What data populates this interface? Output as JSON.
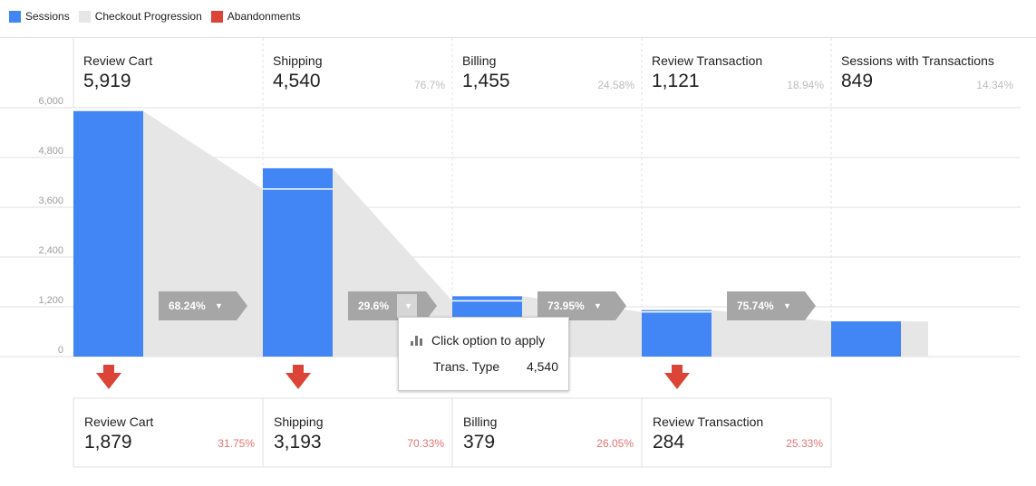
{
  "legend": [
    {
      "label": "Sessions",
      "color": "#4285f4"
    },
    {
      "label": "Checkout Progression",
      "color": "#e6e6e6"
    },
    {
      "label": "Abandonments",
      "color": "#db4437"
    }
  ],
  "y_axis": {
    "ticks": [
      "6,000",
      "4,800",
      "3,600",
      "2,400",
      "1,200",
      "0"
    ]
  },
  "stages": [
    {
      "label": "Review Cart",
      "value": "5,919",
      "pct": ""
    },
    {
      "label": "Shipping",
      "value": "4,540",
      "pct": "76.7%"
    },
    {
      "label": "Billing",
      "value": "1,455",
      "pct": "24.58%"
    },
    {
      "label": "Review Transaction",
      "value": "1,121",
      "pct": "18.94%"
    },
    {
      "label": "Sessions with Transactions",
      "value": "849",
      "pct": "14.34%"
    }
  ],
  "progression": [
    "68.24%",
    "29.6%",
    "73.95%",
    "75.74%"
  ],
  "abandonments": [
    {
      "label": "Review Cart",
      "value": "1,879",
      "pct": "31.75%"
    },
    {
      "label": "Shipping",
      "value": "3,193",
      "pct": "70.33%"
    },
    {
      "label": "Billing",
      "value": "379",
      "pct": "26.05%"
    },
    {
      "label": "Review Transaction",
      "value": "284",
      "pct": "25.33%"
    }
  ],
  "tooltip": {
    "title": "Click option to apply",
    "key": "Trans. Type",
    "value": "4,540"
  },
  "chart_data": {
    "type": "bar",
    "title": "",
    "categories": [
      "Review Cart",
      "Shipping",
      "Billing",
      "Review Transaction",
      "Sessions with Transactions"
    ],
    "series": [
      {
        "name": "Sessions",
        "values": [
          5919,
          4540,
          1455,
          1121,
          849
        ],
        "entered_from_prior_step": [
          0,
          4040,
          1344,
          1076,
          849
        ]
      }
    ],
    "ylim": [
      0,
      6000
    ],
    "grid": true,
    "legend": "top-left"
  }
}
